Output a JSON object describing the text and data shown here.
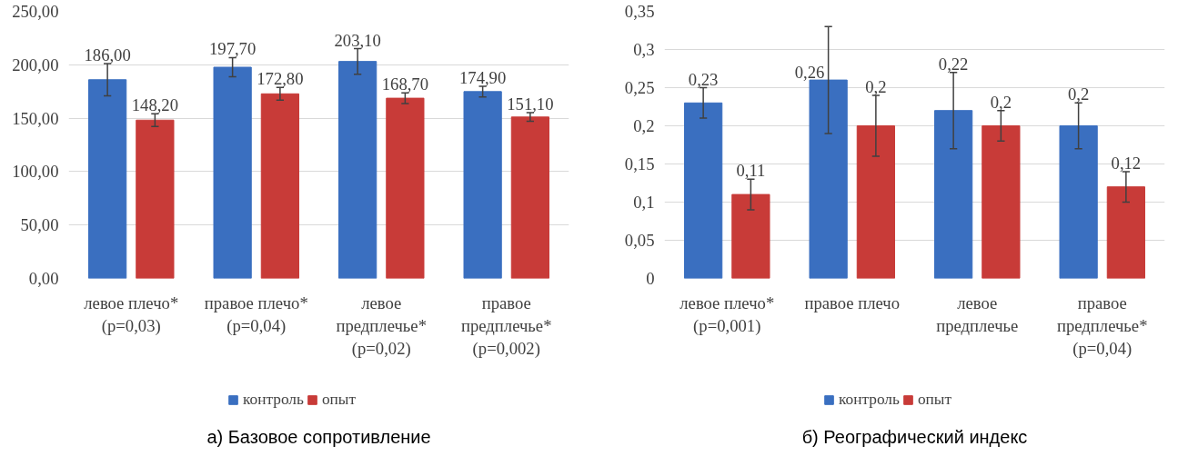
{
  "chart_data": [
    {
      "type": "bar",
      "title": "а) Базовое сопротивление",
      "categories": [
        "левое плечо*\n(p=0,03)",
        "правое плечо*\n(p=0,04)",
        "левое\nпредплечье*\n(p=0,02)",
        "правое\nпредплечье*\n(p=0,002)"
      ],
      "series": [
        {
          "name": "контроль",
          "color": "#3a6fc0",
          "values": [
            186.0,
            197.7,
            203.1,
            174.9
          ],
          "errors": [
            15,
            9,
            12,
            5
          ],
          "value_labels": [
            "186,00",
            "197,70",
            "203,10",
            "174,90"
          ]
        },
        {
          "name": "опыт",
          "color": "#c83b38",
          "values": [
            148.2,
            172.8,
            168.7,
            151.1
          ],
          "errors": [
            6,
            6,
            5,
            4
          ],
          "value_labels": [
            "148,20",
            "172,80",
            "168,70",
            "151,10"
          ]
        }
      ],
      "ylim": [
        0,
        250
      ],
      "yticks": [
        {
          "value": 0,
          "label": "0,00"
        },
        {
          "value": 50,
          "label": "50,00"
        },
        {
          "value": 100,
          "label": "100,00"
        },
        {
          "value": 150,
          "label": "150,00"
        },
        {
          "value": 200,
          "label": "200,00"
        },
        {
          "value": 250,
          "label": "250,00"
        }
      ],
      "grid": "y",
      "legend": "bottom"
    },
    {
      "type": "bar",
      "title": "б) Реографический индекс",
      "categories": [
        "левое плечо*\n(p=0,001)",
        "правое плечо",
        "левое\nпредплечье",
        "правое\nпредплечье*\n(p=0,04)"
      ],
      "series": [
        {
          "name": "контроль",
          "color": "#3a6fc0",
          "values": [
            0.23,
            0.26,
            0.22,
            0.2
          ],
          "errors": [
            0.02,
            0.07,
            0.05,
            0.03
          ],
          "value_labels": [
            "0,23",
            "0,26",
            "0,22",
            "0,2"
          ]
        },
        {
          "name": "опыт",
          "color": "#c83b38",
          "values": [
            0.11,
            0.2,
            0.2,
            0.12
          ],
          "errors": [
            0.02,
            0.04,
            0.02,
            0.02
          ],
          "value_labels": [
            "0,11",
            "0,2",
            "0,2",
            "0,12"
          ]
        }
      ],
      "ylim": [
        0,
        0.35
      ],
      "yticks": [
        0,
        {
          "value": 0.05,
          "label": "0,05"
        },
        {
          "value": 0.1,
          "label": "0,1"
        },
        {
          "value": 0.15,
          "label": "0,15"
        },
        {
          "value": 0.2,
          "label": "0,2"
        },
        {
          "value": 0.25,
          "label": "0,25"
        },
        {
          "value": 0.3,
          "label": "0,3"
        },
        {
          "value": 0.35,
          "label": "0,35"
        }
      ],
      "grid": "y",
      "legend": "bottom"
    }
  ]
}
